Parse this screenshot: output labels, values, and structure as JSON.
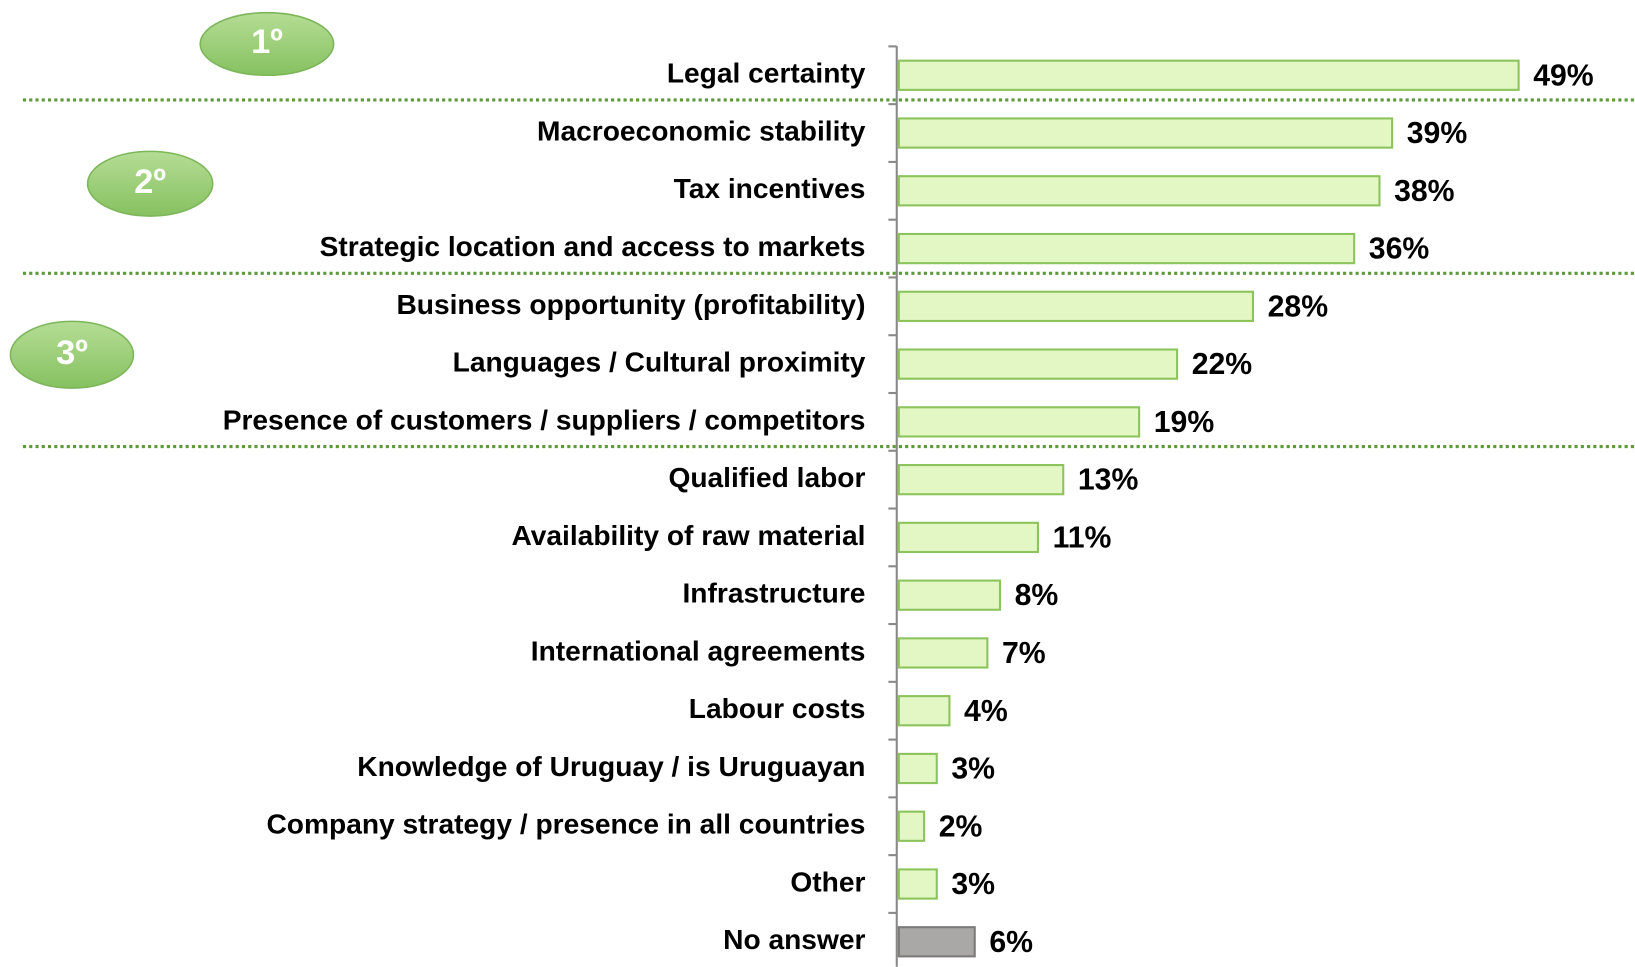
{
  "chart_data": {
    "type": "bar",
    "orientation": "horizontal",
    "categories": [
      "Legal certainty",
      "Macroeconomic stability",
      "Tax incentives",
      "Strategic location and access to markets",
      "Business opportunity (profitability)",
      "Languages / Cultural proximity",
      "Presence of customers / suppliers / competitors",
      "Qualified labor",
      "Availability of raw material",
      "Infrastructure",
      "International agreements",
      "Labour costs",
      "Knowledge of Uruguay / is Uruguayan",
      "Company strategy / presence in all countries",
      "Other",
      "No answer"
    ],
    "values": [
      49,
      39,
      38,
      36,
      28,
      22,
      19,
      13,
      11,
      8,
      7,
      4,
      3,
      2,
      3,
      6
    ],
    "value_labels": [
      "49%",
      "39%",
      "38%",
      "36%",
      "28%",
      "22%",
      "19%",
      "13%",
      "11%",
      "8%",
      "7%",
      "4%",
      "3%",
      "2%",
      "3%",
      "6%"
    ],
    "colors": [
      "#e2f7c4",
      "#e2f7c4",
      "#e2f7c4",
      "#e2f7c4",
      "#e2f7c4",
      "#e2f7c4",
      "#e2f7c4",
      "#e2f7c4",
      "#e2f7c4",
      "#e2f7c4",
      "#e2f7c4",
      "#e2f7c4",
      "#e2f7c4",
      "#e2f7c4",
      "#e2f7c4",
      "#aaa7a7"
    ],
    "annotations": [
      "1º",
      "2º",
      "3º"
    ]
  }
}
